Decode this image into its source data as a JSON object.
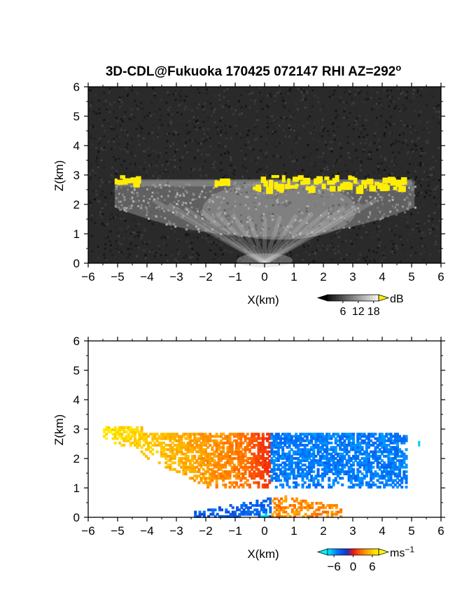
{
  "figure": {
    "title_main": "3D-CDL@Fukuoka 170425 072147 RHI AZ=292",
    "title_sup": "o"
  },
  "chart_data": [
    {
      "type": "heatmap",
      "panel": "intensity",
      "xlabel": "X(km)",
      "ylabel": "Z(km)",
      "xlim": [
        -6,
        6
      ],
      "ylim": [
        0,
        6
      ],
      "xticks": [
        "−6",
        "−5",
        "−4",
        "−3",
        "−2",
        "−1",
        "0",
        "1",
        "2",
        "3",
        "4",
        "5",
        "6"
      ],
      "yticks": [
        "0",
        "1",
        "2",
        "3",
        "4",
        "5",
        "6"
      ],
      "colorbar": {
        "unit": "dB",
        "ticks": [
          "6",
          "12",
          "18"
        ],
        "tick_values": [
          6,
          12,
          18
        ],
        "range": [
          0,
          20
        ]
      },
      "background_color": "#2a2a2a",
      "high_color": "#ffee00",
      "layer": {
        "x_range": [
          -5.1,
          5.1
        ],
        "top": 2.8,
        "base_edges": 1.9,
        "base_center": 0.9
      },
      "strong_echo_segments": [
        {
          "x": [
            -5.1,
            -4.3
          ],
          "z": [
            2.8,
            3.0
          ]
        },
        {
          "x": [
            -1.7,
            -1.3
          ],
          "z": [
            2.8,
            2.9
          ]
        },
        {
          "x": [
            -0.4,
            4.7
          ],
          "z": [
            2.6,
            3.0
          ]
        }
      ]
    },
    {
      "type": "heatmap",
      "panel": "doppler_velocity",
      "xlabel": "X(km)",
      "ylabel": "Z(km)",
      "xlim": [
        -6,
        6
      ],
      "ylim": [
        0,
        6
      ],
      "xticks": [
        "−6",
        "−5",
        "−4",
        "−3",
        "−2",
        "−1",
        "0",
        "1",
        "2",
        "3",
        "4",
        "5",
        "6"
      ],
      "yticks": [
        "0",
        "1",
        "2",
        "3",
        "4",
        "5",
        "6"
      ],
      "colorbar": {
        "unit": "ms",
        "unit_sup": "−1",
        "ticks": [
          "−6",
          "0",
          "6"
        ],
        "tick_values": [
          -6,
          0,
          6
        ],
        "range": [
          -8,
          8
        ]
      },
      "velocity_field": {
        "zero_line_x": 0.2,
        "x_range": [
          -5.5,
          4.8
        ],
        "z_range": [
          1.0,
          3.0
        ],
        "far_left_value": 7,
        "near_left_value": 2,
        "right_value": -5
      },
      "low_level_echo": {
        "x_range": [
          -2.4,
          2.6
        ],
        "z_range": [
          0.0,
          0.7
        ]
      }
    }
  ]
}
